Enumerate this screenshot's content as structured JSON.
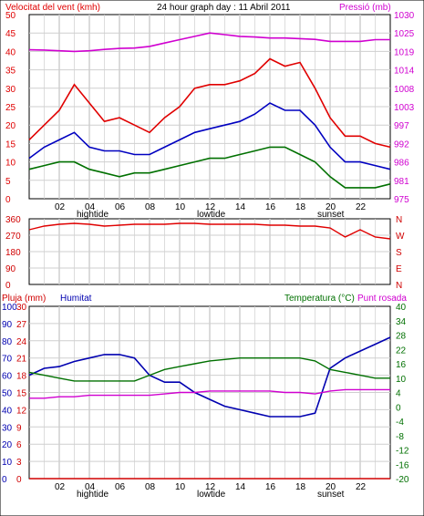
{
  "header": {
    "title": "24 hour graph day : 11 Abril 2011",
    "left_label": "Velocitat del vent (kmh)",
    "right_label": "Pressió (mb)"
  },
  "colors": {
    "wind": "#e00000",
    "wind_avg": "#0000c0",
    "wind_low": "#007000",
    "pressure": "#d000d0",
    "humidity": "#0000b0",
    "temperature": "#007000",
    "dewpoint": "#d000d0",
    "rain": "#d00000",
    "grid": "#cfcfcf"
  },
  "chart_data": [
    {
      "type": "line",
      "name": "wind-pressure",
      "x_ticks": [
        "02",
        "04",
        "06",
        "08",
        "10",
        "12",
        "14",
        "16",
        "18",
        "20",
        "22"
      ],
      "x_sublabels": [
        {
          "at": "04",
          "text": "hightide"
        },
        {
          "at": "12",
          "text": "lowtide"
        },
        {
          "at": "20",
          "text": "sunset"
        }
      ],
      "yleft_ticks": [
        "0",
        "5",
        "10",
        "15",
        "20",
        "25",
        "30",
        "35",
        "40",
        "45",
        "50"
      ],
      "yleft_lim": [
        0,
        50
      ],
      "yright_ticks": [
        "975",
        "981",
        "986",
        "992",
        "997",
        "1003",
        "1008",
        "1014",
        "1019",
        "1025",
        "1030"
      ],
      "yright_lim": [
        975,
        1030
      ],
      "series": [
        {
          "name": "Velocitat del vent (kmh)",
          "x": [
            0,
            1,
            2,
            3,
            4,
            5,
            6,
            7,
            8,
            9,
            10,
            11,
            12,
            13,
            14,
            15,
            16,
            17,
            18,
            19,
            20,
            21,
            22,
            23,
            24
          ],
          "values": [
            16,
            20,
            24,
            31,
            26,
            21,
            22,
            20,
            18,
            22,
            25,
            30,
            31,
            31,
            32,
            34,
            38,
            36,
            37,
            30,
            22,
            17,
            17,
            15,
            14
          ]
        },
        {
          "name": "wind average",
          "x": [
            0,
            1,
            2,
            3,
            4,
            5,
            6,
            7,
            8,
            9,
            10,
            11,
            12,
            13,
            14,
            15,
            16,
            17,
            18,
            19,
            20,
            21,
            22,
            23,
            24
          ],
          "values": [
            11,
            14,
            16,
            18,
            14,
            13,
            13,
            12,
            12,
            14,
            16,
            18,
            19,
            20,
            21,
            23,
            26,
            24,
            24,
            20,
            14,
            10,
            10,
            9,
            8
          ]
        },
        {
          "name": "wind low",
          "x": [
            0,
            1,
            2,
            3,
            4,
            5,
            6,
            7,
            8,
            9,
            10,
            11,
            12,
            13,
            14,
            15,
            16,
            17,
            18,
            19,
            20,
            21,
            22,
            23,
            24
          ],
          "values": [
            8,
            9,
            10,
            10,
            8,
            7,
            6,
            7,
            7,
            8,
            9,
            10,
            11,
            11,
            12,
            13,
            14,
            14,
            12,
            10,
            6,
            3,
            3,
            3,
            4
          ]
        },
        {
          "name": "Pressió (mb)",
          "x": [
            0,
            1,
            2,
            3,
            4,
            5,
            6,
            7,
            8,
            9,
            10,
            11,
            12,
            13,
            14,
            15,
            16,
            17,
            18,
            19,
            20,
            21,
            22,
            23,
            24
          ],
          "values": [
            1019.5,
            1019.4,
            1019.2,
            1019.0,
            1019.2,
            1019.6,
            1019.9,
            1020.0,
            1020.5,
            1021.5,
            1022.5,
            1023.5,
            1024.5,
            1024.0,
            1023.5,
            1023.3,
            1023.0,
            1023.0,
            1022.8,
            1022.6,
            1022.0,
            1022.0,
            1022.0,
            1022.5,
            1022.5
          ]
        }
      ]
    },
    {
      "type": "line",
      "name": "wind-direction",
      "x_ticks": [],
      "yleft_ticks": [
        "0",
        "90",
        "180",
        "270",
        "360"
      ],
      "yleft_lim": [
        0,
        360
      ],
      "yright_ticks": [
        "N",
        "W",
        "S",
        "E",
        "N"
      ],
      "series": [
        {
          "name": "direction",
          "x": [
            0,
            1,
            2,
            3,
            4,
            5,
            6,
            7,
            8,
            9,
            10,
            11,
            12,
            13,
            14,
            15,
            16,
            17,
            18,
            19,
            20,
            21,
            22,
            23,
            24
          ],
          "values": [
            300,
            320,
            330,
            335,
            330,
            320,
            325,
            330,
            330,
            330,
            335,
            335,
            330,
            330,
            330,
            330,
            325,
            325,
            320,
            320,
            310,
            260,
            300,
            260,
            250
          ]
        }
      ]
    },
    {
      "type": "line",
      "name": "humidity-temperature",
      "x_ticks": [
        "02",
        "04",
        "06",
        "08",
        "10",
        "12",
        "14",
        "16",
        "18",
        "20",
        "22"
      ],
      "x_sublabels": [
        {
          "at": "04",
          "text": "hightide"
        },
        {
          "at": "12",
          "text": "lowtide"
        },
        {
          "at": "20",
          "text": "sunset"
        }
      ],
      "header_labels": {
        "rain": "Pluja (mm)",
        "humidity": "Humitat",
        "temperature": "Temperatura (°C)",
        "dewpoint": "Punt rosada"
      },
      "yleft_rain_ticks": [
        "0",
        "3",
        "6",
        "9",
        "12",
        "15",
        "18",
        "21",
        "24",
        "27",
        "30"
      ],
      "yleft_rain_lim": [
        0,
        30
      ],
      "yleft_hum_ticks": [
        "0",
        "10",
        "20",
        "30",
        "40",
        "50",
        "60",
        "70",
        "80",
        "90",
        "100"
      ],
      "yleft_hum_lim": [
        0,
        100
      ],
      "yright_ticks": [
        "-20",
        "-16",
        "-12",
        "-8",
        "-4",
        "0",
        "4",
        "10",
        "16",
        "22",
        "28",
        "34",
        "40"
      ],
      "yright_lim": [
        -20,
        40
      ],
      "series": [
        {
          "name": "Humitat",
          "x": [
            0,
            1,
            2,
            3,
            4,
            5,
            6,
            7,
            8,
            9,
            10,
            11,
            12,
            13,
            14,
            15,
            16,
            17,
            18,
            19,
            20,
            21,
            22,
            23,
            24
          ],
          "values": [
            60,
            64,
            65,
            68,
            70,
            72,
            72,
            70,
            60,
            56,
            56,
            50,
            46,
            42,
            40,
            38,
            36,
            36,
            36,
            38,
            64,
            70,
            74,
            78,
            82
          ]
        },
        {
          "name": "Temperatura (°C)",
          "x": [
            0,
            1,
            2,
            3,
            4,
            5,
            6,
            7,
            8,
            9,
            10,
            11,
            12,
            13,
            14,
            15,
            16,
            17,
            18,
            19,
            20,
            21,
            22,
            23,
            24
          ],
          "values": [
            17,
            16,
            15,
            14,
            14,
            14,
            14,
            14,
            16,
            18,
            19,
            20,
            21,
            21.5,
            22,
            22,
            22,
            22,
            22,
            21,
            18,
            17,
            16,
            15,
            15
          ]
        },
        {
          "name": "Punt rosada",
          "x": [
            0,
            1,
            2,
            3,
            4,
            5,
            6,
            7,
            8,
            9,
            10,
            11,
            12,
            13,
            14,
            15,
            16,
            17,
            18,
            19,
            20,
            21,
            22,
            23,
            24
          ],
          "values": [
            8,
            8,
            8.5,
            8.5,
            9,
            9,
            9,
            9,
            9,
            9.5,
            10,
            10,
            10.5,
            10.5,
            10.5,
            10.5,
            10.5,
            10,
            10,
            9.5,
            10.5,
            11,
            11,
            11,
            11
          ]
        },
        {
          "name": "Pluja (mm)",
          "x": [
            0,
            24
          ],
          "values": [
            0,
            0
          ]
        }
      ]
    }
  ]
}
